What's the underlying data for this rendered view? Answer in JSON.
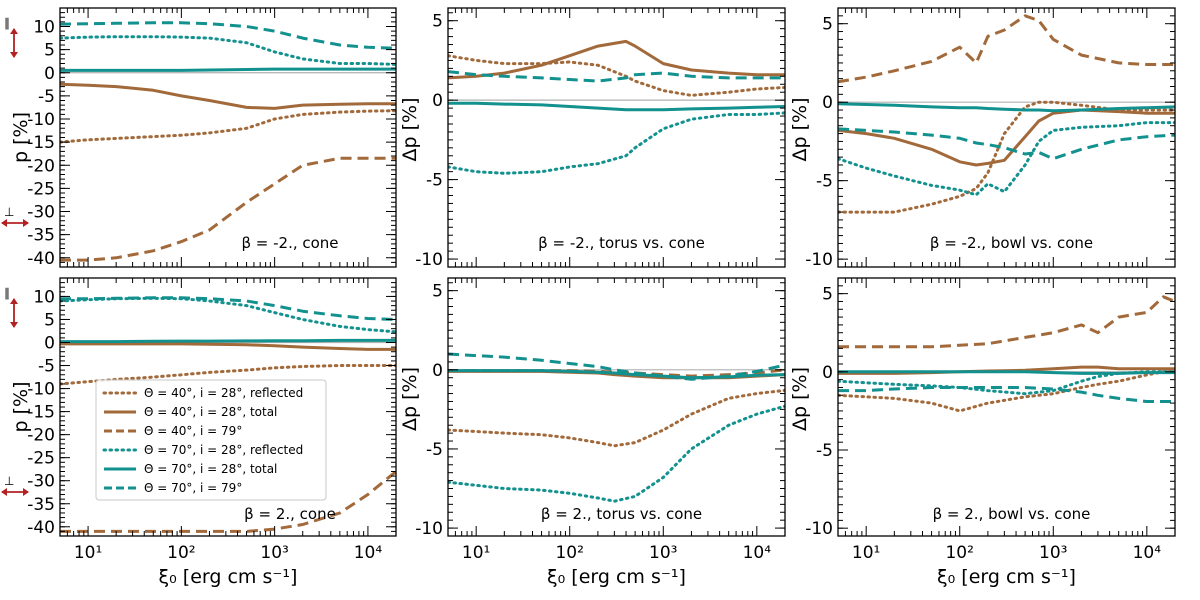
{
  "colors": {
    "brown": "#a2693a",
    "teal": "#12918f",
    "zero": "#b0b0b0",
    "arrow": "#b22222"
  },
  "axis": {
    "xlabel": "ξ₀ [erg cm s⁻¹]",
    "ylabel_p": "p [%]",
    "ylabel_dp": "Δp [%]",
    "xtick_labels": [
      "10¹",
      "10²",
      "10³",
      "10⁴"
    ],
    "parallel_symbol": "∥",
    "perp_symbol": "⊥"
  },
  "legend": [
    {
      "label": "Θ = 40°, i = 28°, reflected",
      "color": "brown",
      "style": "dotted"
    },
    {
      "label": "Θ = 40°, i = 28°, total",
      "color": "brown",
      "style": "solid"
    },
    {
      "label": "Θ = 40°, i = 79°",
      "color": "brown",
      "style": "dashed"
    },
    {
      "label": "Θ = 70°, i = 28°, reflected",
      "color": "teal",
      "style": "dotted"
    },
    {
      "label": "Θ = 70°, i = 28°, total",
      "color": "teal",
      "style": "solid"
    },
    {
      "label": "Θ = 70°, i = 79°",
      "color": "teal",
      "style": "dashed"
    }
  ],
  "chart_data": [
    {
      "type": "line",
      "id": "p00",
      "title": "β = -2., cone",
      "xscale": "log",
      "xlim": [
        5,
        20000
      ],
      "ylim": [
        -42,
        14
      ],
      "ylabel": "p [%]",
      "yticks": [
        10,
        5,
        0,
        -5,
        -10,
        -15,
        -20,
        -25,
        -30,
        -35,
        -40
      ],
      "x": [
        5,
        10,
        20,
        50,
        100,
        200,
        500,
        1000,
        2000,
        5000,
        10000,
        20000
      ],
      "series": [
        {
          "name": "Θ = 40°, i = 28°, reflected",
          "values": [
            -15,
            -14.5,
            -14.2,
            -13.8,
            -13.5,
            -13,
            -12,
            -10,
            -9,
            -8.5,
            -8.3,
            -8.2
          ]
        },
        {
          "name": "Θ = 40°, i = 28°, total",
          "values": [
            -2.5,
            -2.7,
            -3,
            -3.8,
            -5,
            -6,
            -7.5,
            -7.7,
            -7,
            -6.8,
            -6.7,
            -6.7
          ]
        },
        {
          "name": "Θ = 40°, i = 79°",
          "values": [
            -40.5,
            -40.5,
            -40,
            -38.5,
            -36.5,
            -34,
            -28,
            -24,
            -20,
            -18.5,
            -18.5,
            -18.5
          ]
        },
        {
          "name": "Θ = 70°, i = 28°, reflected",
          "values": [
            7.5,
            7.7,
            7.8,
            7.8,
            7.7,
            7.5,
            6.5,
            4.5,
            3,
            2,
            2,
            1.8
          ]
        },
        {
          "name": "Θ = 70°, i = 28°, total",
          "values": [
            0.5,
            0.5,
            0.5,
            0.5,
            0.5,
            0.6,
            0.7,
            0.8,
            0.8,
            0.8,
            0.8,
            0.8
          ]
        },
        {
          "name": "Θ = 70°, i = 79°",
          "values": [
            10.5,
            10.6,
            10.7,
            10.8,
            10.8,
            10.6,
            10,
            9,
            7.5,
            6,
            5.5,
            5.3
          ]
        }
      ]
    },
    {
      "type": "line",
      "id": "p01",
      "title": "β = -2., torus vs. cone",
      "xscale": "log",
      "xlim": [
        5,
        20000
      ],
      "ylim": [
        -10.5,
        5.8
      ],
      "ylabel": "Δp [%]",
      "yticks": [
        5,
        0,
        -5,
        -10
      ],
      "x": [
        5,
        10,
        20,
        50,
        100,
        200,
        400,
        500,
        1000,
        2000,
        5000,
        10000,
        20000
      ],
      "series": [
        {
          "name": "Θ = 40°, i = 28°, reflected",
          "values": [
            2.8,
            2.5,
            2.3,
            2.3,
            2.4,
            2.2,
            1.5,
            1.2,
            0.6,
            0.3,
            0.5,
            0.7,
            0.8
          ]
        },
        {
          "name": "Θ = 40°, i = 28°, total",
          "values": [
            1.4,
            1.5,
            1.7,
            2.2,
            2.8,
            3.4,
            3.7,
            3.4,
            2.3,
            1.9,
            1.7,
            1.6,
            1.6
          ]
        },
        {
          "name": "Θ = 70°, i = 28°, reflected",
          "values": [
            -4.2,
            -4.5,
            -4.6,
            -4.5,
            -4.2,
            -4,
            -3.5,
            -3,
            -1.8,
            -1.2,
            -0.9,
            -0.9,
            -0.8
          ]
        },
        {
          "name": "Θ = 70°, i = 28°, total",
          "values": [
            -0.2,
            -0.2,
            -0.25,
            -0.3,
            -0.4,
            -0.5,
            -0.6,
            -0.6,
            -0.6,
            -0.55,
            -0.5,
            -0.45,
            -0.4
          ]
        },
        {
          "name": "Θ = 70°, i = 79°",
          "values": [
            1.8,
            1.6,
            1.5,
            1.4,
            1.3,
            1.2,
            1.4,
            1.6,
            1.7,
            1.5,
            1.4,
            1.4,
            1.4
          ]
        }
      ]
    },
    {
      "type": "line",
      "id": "p02",
      "title": "β = -2., bowl vs. cone",
      "xscale": "log",
      "xlim": [
        5,
        20000
      ],
      "ylim": [
        -10.5,
        6
      ],
      "ylabel": "Δp [%]",
      "yticks": [
        5,
        0,
        -5,
        -10
      ],
      "x": [
        5,
        10,
        20,
        50,
        100,
        150,
        200,
        300,
        500,
        700,
        1000,
        2000,
        5000,
        10000,
        20000
      ],
      "series": [
        {
          "name": "Θ = 40°, i = 28°, reflected",
          "values": [
            -7,
            -7,
            -7,
            -6.5,
            -6,
            -5.5,
            -4.5,
            -2,
            -0.3,
            0,
            0,
            -0.2,
            -0.5,
            -0.5,
            -0.5
          ]
        },
        {
          "name": "Θ = 40°, i = 28°, total",
          "values": [
            -1.8,
            -2,
            -2.3,
            -3,
            -3.8,
            -4,
            -3.9,
            -3.7,
            -2.2,
            -1.2,
            -0.7,
            -0.5,
            -0.6,
            -0.7,
            -0.7
          ]
        },
        {
          "name": "Θ = 40°, i = 79°",
          "values": [
            1.3,
            1.6,
            2,
            2.6,
            3.5,
            2.5,
            4.2,
            4.6,
            5.5,
            5.2,
            4,
            3,
            2.5,
            2.4,
            2.4
          ]
        },
        {
          "name": "Θ = 70°, i = 28°, reflected",
          "values": [
            -3.6,
            -4.2,
            -4.7,
            -5.3,
            -5.6,
            -5.9,
            -5.2,
            -5.7,
            -4,
            -2.5,
            -1.8,
            -1.6,
            -1.5,
            -1.3,
            -1.3
          ]
        },
        {
          "name": "Θ = 70°, i = 28°, total",
          "values": [
            -0.1,
            -0.15,
            -0.2,
            -0.3,
            -0.35,
            -0.35,
            -0.4,
            -0.45,
            -0.5,
            -0.5,
            -0.55,
            -0.5,
            -0.4,
            -0.35,
            -0.3
          ]
        },
        {
          "name": "Θ = 70°, i = 79°",
          "values": [
            -1.7,
            -1.8,
            -1.9,
            -2.1,
            -2.3,
            -2.6,
            -2.7,
            -2.9,
            -3.3,
            -3.2,
            -3.6,
            -3,
            -2.4,
            -2.2,
            -2.1
          ]
        }
      ]
    },
    {
      "type": "line",
      "id": "p10",
      "title": "β = 2., cone",
      "xscale": "log",
      "xlim": [
        5,
        20000
      ],
      "ylim": [
        -42,
        14
      ],
      "ylabel": "p [%]",
      "yticks": [
        10,
        5,
        0,
        -5,
        -10,
        -15,
        -20,
        -25,
        -30,
        -35,
        -40
      ],
      "x": [
        5,
        10,
        20,
        50,
        100,
        200,
        500,
        1000,
        2000,
        5000,
        10000,
        20000
      ],
      "series": [
        {
          "name": "Θ = 40°, i = 28°, reflected",
          "values": [
            -9,
            -8.5,
            -8,
            -7.5,
            -7,
            -6.5,
            -6,
            -5.5,
            -5.2,
            -5,
            -5,
            -5
          ]
        },
        {
          "name": "Θ = 40°, i = 28°, total",
          "values": [
            -0.3,
            -0.3,
            -0.3,
            -0.3,
            -0.3,
            -0.4,
            -0.5,
            -0.7,
            -1,
            -1.3,
            -1.5,
            -1.5
          ]
        },
        {
          "name": "Θ = 40°, i = 79°",
          "values": [
            -41,
            -41,
            -41,
            -41,
            -41,
            -41,
            -41,
            -40.5,
            -39.5,
            -37,
            -33,
            -28
          ]
        },
        {
          "name": "Θ = 70°, i = 28°, reflected",
          "values": [
            9,
            9.3,
            9.5,
            9.6,
            9.5,
            9,
            8,
            6.5,
            5,
            3.5,
            2.8,
            2.3
          ]
        },
        {
          "name": "Θ = 70°, i = 28°, total",
          "values": [
            0.2,
            0.2,
            0.2,
            0.25,
            0.3,
            0.3,
            0.35,
            0.4,
            0.4,
            0.45,
            0.45,
            0.45
          ]
        },
        {
          "name": "Θ = 70°, i = 79°",
          "values": [
            9.5,
            9.5,
            9.6,
            9.7,
            9.7,
            9.5,
            9,
            8,
            6.8,
            5.8,
            5.2,
            5
          ]
        }
      ]
    },
    {
      "type": "line",
      "id": "p11",
      "title": "β = 2., torus vs. cone",
      "xscale": "log",
      "xlim": [
        5,
        20000
      ],
      "ylim": [
        -10.5,
        5.8
      ],
      "ylabel": "Δp [%]",
      "yticks": [
        5,
        0,
        -5,
        -10
      ],
      "x": [
        5,
        10,
        20,
        50,
        100,
        200,
        300,
        500,
        1000,
        2000,
        5000,
        10000,
        20000
      ],
      "series": [
        {
          "name": "Θ = 40°, i = 28°, reflected",
          "values": [
            -3.8,
            -3.9,
            -4,
            -4.1,
            -4.3,
            -4.6,
            -4.8,
            -4.6,
            -3.8,
            -2.8,
            -1.8,
            -1.5,
            -1.3
          ]
        },
        {
          "name": "Θ = 40°, i = 28°, total",
          "values": [
            -0.1,
            -0.1,
            -0.1,
            -0.1,
            -0.15,
            -0.2,
            -0.3,
            -0.4,
            -0.5,
            -0.5,
            -0.5,
            -0.4,
            -0.3
          ]
        },
        {
          "name": "Θ = 40°, i = 79°",
          "values": [
            -0.05,
            -0.05,
            -0.05,
            -0.05,
            -0.05,
            -0.1,
            -0.15,
            -0.2,
            -0.3,
            -0.4,
            -0.3,
            -0.2,
            0
          ]
        },
        {
          "name": "Θ = 70°, i = 28°, reflected",
          "values": [
            -7.1,
            -7.3,
            -7.5,
            -7.6,
            -7.8,
            -8.1,
            -8.3,
            -8,
            -6.8,
            -5,
            -3.5,
            -2.8,
            -2.3
          ]
        },
        {
          "name": "Θ = 70°, i = 28°, total",
          "values": [
            -0.05,
            -0.05,
            -0.05,
            -0.05,
            -0.1,
            -0.15,
            -0.2,
            -0.3,
            -0.4,
            -0.5,
            -0.45,
            -0.35,
            -0.3
          ]
        },
        {
          "name": "Θ = 70°, i = 79°",
          "values": [
            1,
            0.9,
            0.8,
            0.6,
            0.4,
            0.2,
            0,
            -0.2,
            -0.4,
            -0.6,
            -0.4,
            -0.1,
            0.3
          ]
        }
      ]
    },
    {
      "type": "line",
      "id": "p12",
      "title": "β = 2., bowl vs. cone",
      "xscale": "log",
      "xlim": [
        5,
        20000
      ],
      "ylim": [
        -10.5,
        6
      ],
      "ylabel": "Δp [%]",
      "yticks": [
        5,
        0,
        -5,
        -10
      ],
      "x": [
        5,
        10,
        20,
        50,
        100,
        200,
        500,
        1000,
        2000,
        3000,
        5000,
        10000,
        15000,
        20000
      ],
      "series": [
        {
          "name": "Θ = 40°, i = 28°, reflected",
          "values": [
            -1.5,
            -1.6,
            -1.7,
            -2,
            -2.5,
            -2,
            -1.6,
            -1.4,
            -1,
            -0.8,
            -0.6,
            -0.2,
            0,
            0
          ]
        },
        {
          "name": "Θ = 40°, i = 28°, total",
          "values": [
            -0.1,
            -0.1,
            -0.1,
            -0.05,
            0,
            0.05,
            0.1,
            0.2,
            0.3,
            0.3,
            0.2,
            0.2,
            0.2,
            0.2
          ]
        },
        {
          "name": "Θ = 40°, i = 79°",
          "values": [
            1.6,
            1.6,
            1.6,
            1.6,
            1.7,
            1.8,
            2.2,
            2.5,
            3,
            2.5,
            3.5,
            3.8,
            4.8,
            4.5
          ]
        },
        {
          "name": "Θ = 70°, i = 28°, reflected",
          "values": [
            -0.6,
            -0.7,
            -0.8,
            -0.9,
            -1,
            -1.2,
            -1.4,
            -1.2,
            -0.6,
            -0.3,
            -0.1,
            0,
            0,
            0
          ]
        },
        {
          "name": "Θ = 70°, i = 28°, total",
          "values": [
            0,
            0,
            0,
            0,
            0,
            0,
            0,
            -0.05,
            -0.1,
            -0.1,
            -0.1,
            -0.05,
            -0.05,
            -0.05
          ]
        },
        {
          "name": "Θ = 70°, i = 79°",
          "values": [
            -1.2,
            -1.2,
            -1.1,
            -1,
            -1,
            -1,
            -1,
            -1.1,
            -1.3,
            -1.5,
            -1.7,
            -1.9,
            -1.9,
            -1.9
          ]
        }
      ]
    }
  ]
}
